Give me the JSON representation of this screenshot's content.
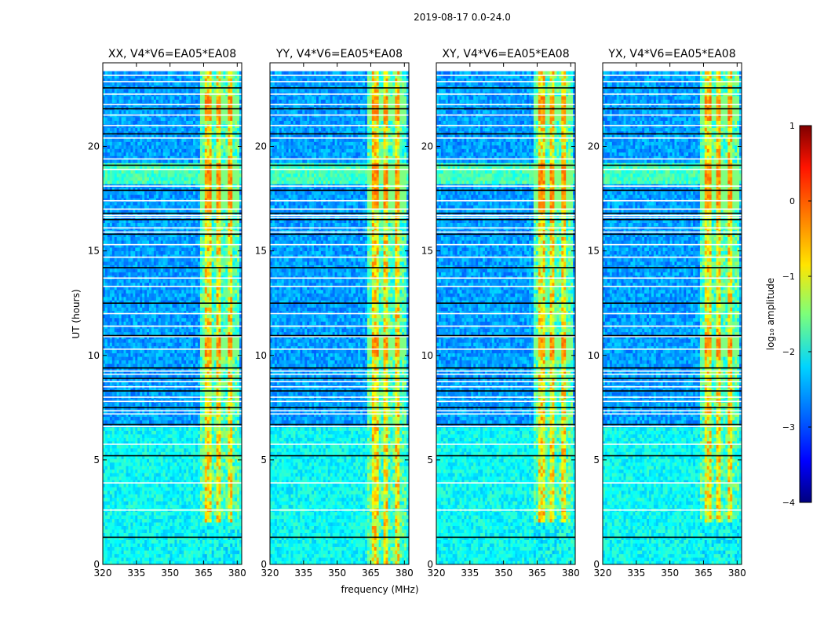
{
  "chart_data": {
    "type": "heatmap",
    "suptitle": "2019-08-17 0.0-24.0",
    "xlabel": "frequency (MHz)",
    "ylabel": "UT (hours)",
    "xlim": [
      320,
      382
    ],
    "ylim": [
      0,
      24
    ],
    "xticks": [
      320,
      335,
      350,
      365,
      380
    ],
    "yticks": [
      0,
      5,
      10,
      15,
      20
    ],
    "panels": [
      {
        "title": "XX, V4*V6=EA05*EA08"
      },
      {
        "title": "YY, V4*V6=EA05*EA08"
      },
      {
        "title": "XY, V4*V6=EA05*EA08"
      },
      {
        "title": "YX, V4*V6=EA05*EA08"
      }
    ],
    "rfi_band_mhz": [
      363,
      381
    ],
    "rfi_channels_mhz": [
      364.5,
      369.5,
      374.5,
      379.5
    ],
    "strong_rfi_hours": [
      [
        10,
        11
      ],
      [
        17,
        18
      ],
      [
        18.2,
        19.3
      ],
      [
        21.3,
        22.5
      ]
    ],
    "flagged_hours": [
      1.3,
      2.6,
      3.9,
      5.2,
      5.75,
      6.6,
      6.7,
      7.2,
      7.35,
      7.5,
      7.8,
      8.0,
      8.3,
      8.5,
      8.75,
      8.9,
      9.1,
      9.25,
      9.4,
      10.3,
      10.9,
      10.95,
      11.4,
      12.0,
      12.5,
      13.3,
      13.7,
      14.2,
      14.7,
      15.3,
      15.8,
      15.9,
      16.1,
      16.5,
      16.6,
      16.7,
      16.8,
      17.0,
      17.4,
      17.9,
      18.1,
      18.9,
      19.1,
      19.4,
      20.4,
      20.6,
      21.0,
      21.5,
      21.8,
      22.0,
      22.5,
      22.8,
      23.1,
      23.4
    ],
    "data_end_hour": 23.6,
    "colorbar": {
      "label": "log₁₀ amplitude",
      "range": [
        -4,
        1
      ],
      "ticks": [
        "1",
        "0",
        "−1",
        "−2",
        "−3",
        "−4"
      ],
      "colormap": "jet"
    }
  }
}
